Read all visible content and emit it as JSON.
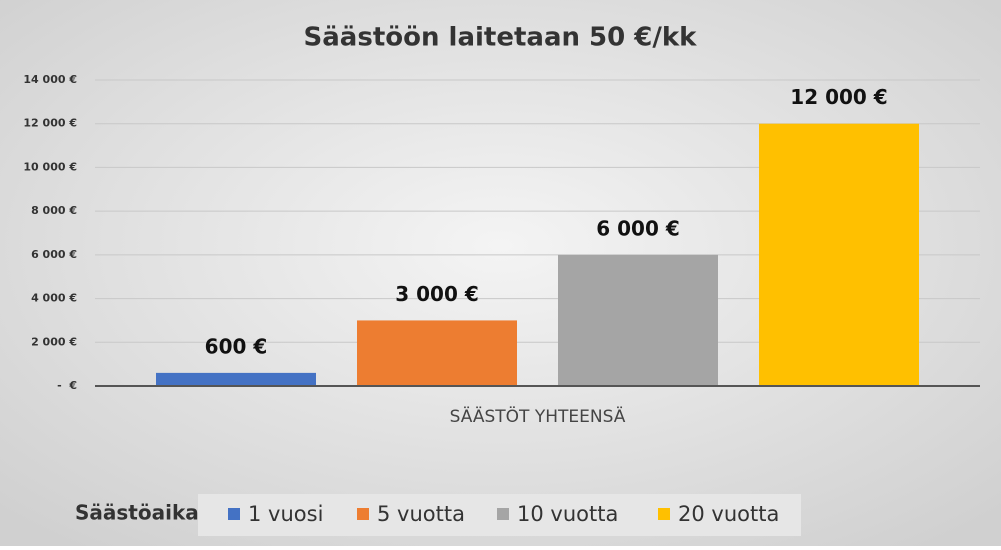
{
  "chart_data": {
    "type": "bar",
    "title": "Säästöön laitetaan 50 €/kk",
    "categories": [
      "SÄÄSTÖT YHTEENSÄ"
    ],
    "legend_title": "Säästöaika",
    "series": [
      {
        "name": "1 vuosi",
        "color": "#4472c4",
        "values": [
          600
        ],
        "value_labels": [
          "600 €"
        ]
      },
      {
        "name": "5 vuotta",
        "color": "#ed7d31",
        "values": [
          3000
        ],
        "value_labels": [
          "3 000 €"
        ]
      },
      {
        "name": "10 vuotta",
        "color": "#a5a5a5",
        "values": [
          6000
        ],
        "value_labels": [
          "6 000 €"
        ]
      },
      {
        "name": "20 vuotta",
        "color": "#ffc000",
        "values": [
          12000
        ],
        "value_labels": [
          "12 000 €"
        ]
      }
    ],
    "ylim": [
      0,
      14000
    ],
    "yticks": [
      {
        "value": 0,
        "label": "-  €"
      },
      {
        "value": 2000,
        "label": "2 000 €"
      },
      {
        "value": 4000,
        "label": "4 000 €"
      },
      {
        "value": 6000,
        "label": "6 000 €"
      },
      {
        "value": 8000,
        "label": "8 000 €"
      },
      {
        "value": 10000,
        "label": "10 000 €"
      },
      {
        "value": 12000,
        "label": "12 000 €"
      },
      {
        "value": 14000,
        "label": "14 000 €"
      }
    ],
    "grid": true
  }
}
